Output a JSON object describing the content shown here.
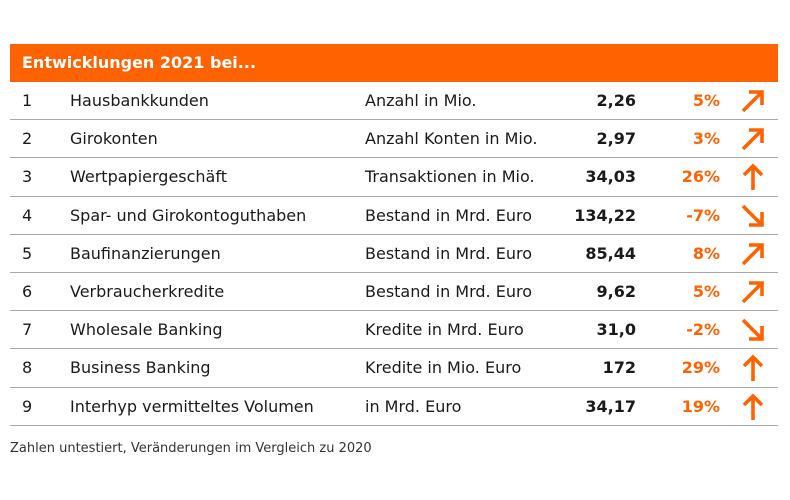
{
  "title": "Entwicklungen 2021 bei...",
  "accent_color": "#ff6200",
  "rows": [
    {
      "num": "1",
      "name": "Hausbankkunden",
      "unit": "Anzahl in Mio.",
      "value": "2,26",
      "change": "5%",
      "trend": "up-right"
    },
    {
      "num": "2",
      "name": "Girokonten",
      "unit": "Anzahl Konten in Mio.",
      "value": "2,97",
      "change": "3%",
      "trend": "up-right"
    },
    {
      "num": "3",
      "name": "Wertpapiergeschäft",
      "unit": "Transaktionen in Mio.",
      "value": "34,03",
      "change": "26%",
      "trend": "up"
    },
    {
      "num": "4",
      "name": "Spar- und Girokontoguthaben",
      "unit": "Bestand in Mrd. Euro",
      "value": "134,22",
      "change": "-7%",
      "trend": "down-right"
    },
    {
      "num": "5",
      "name": "Baufinanzierungen",
      "unit": "Bestand in Mrd. Euro",
      "value": "85,44",
      "change": "8%",
      "trend": "up-right"
    },
    {
      "num": "6",
      "name": "Verbraucherkredite",
      "unit": "Bestand in Mrd. Euro",
      "value": "9,62",
      "change": "5%",
      "trend": "up-right"
    },
    {
      "num": "7",
      "name": "Wholesale Banking",
      "unit": "Kredite in Mrd. Euro",
      "value": "31,0",
      "change": "-2%",
      "trend": "down-right"
    },
    {
      "num": "8",
      "name": "Business Banking",
      "unit": "Kredite in Mio. Euro",
      "value": "172",
      "change": "29%",
      "trend": "up"
    },
    {
      "num": "9",
      "name": "Interhyp vermitteltes Volumen",
      "unit": "in Mrd. Euro",
      "value": "34,17",
      "change": "19%",
      "trend": "up"
    }
  ],
  "footnote": "Zahlen untestiert, Veränderungen im Vergleich zu 2020"
}
